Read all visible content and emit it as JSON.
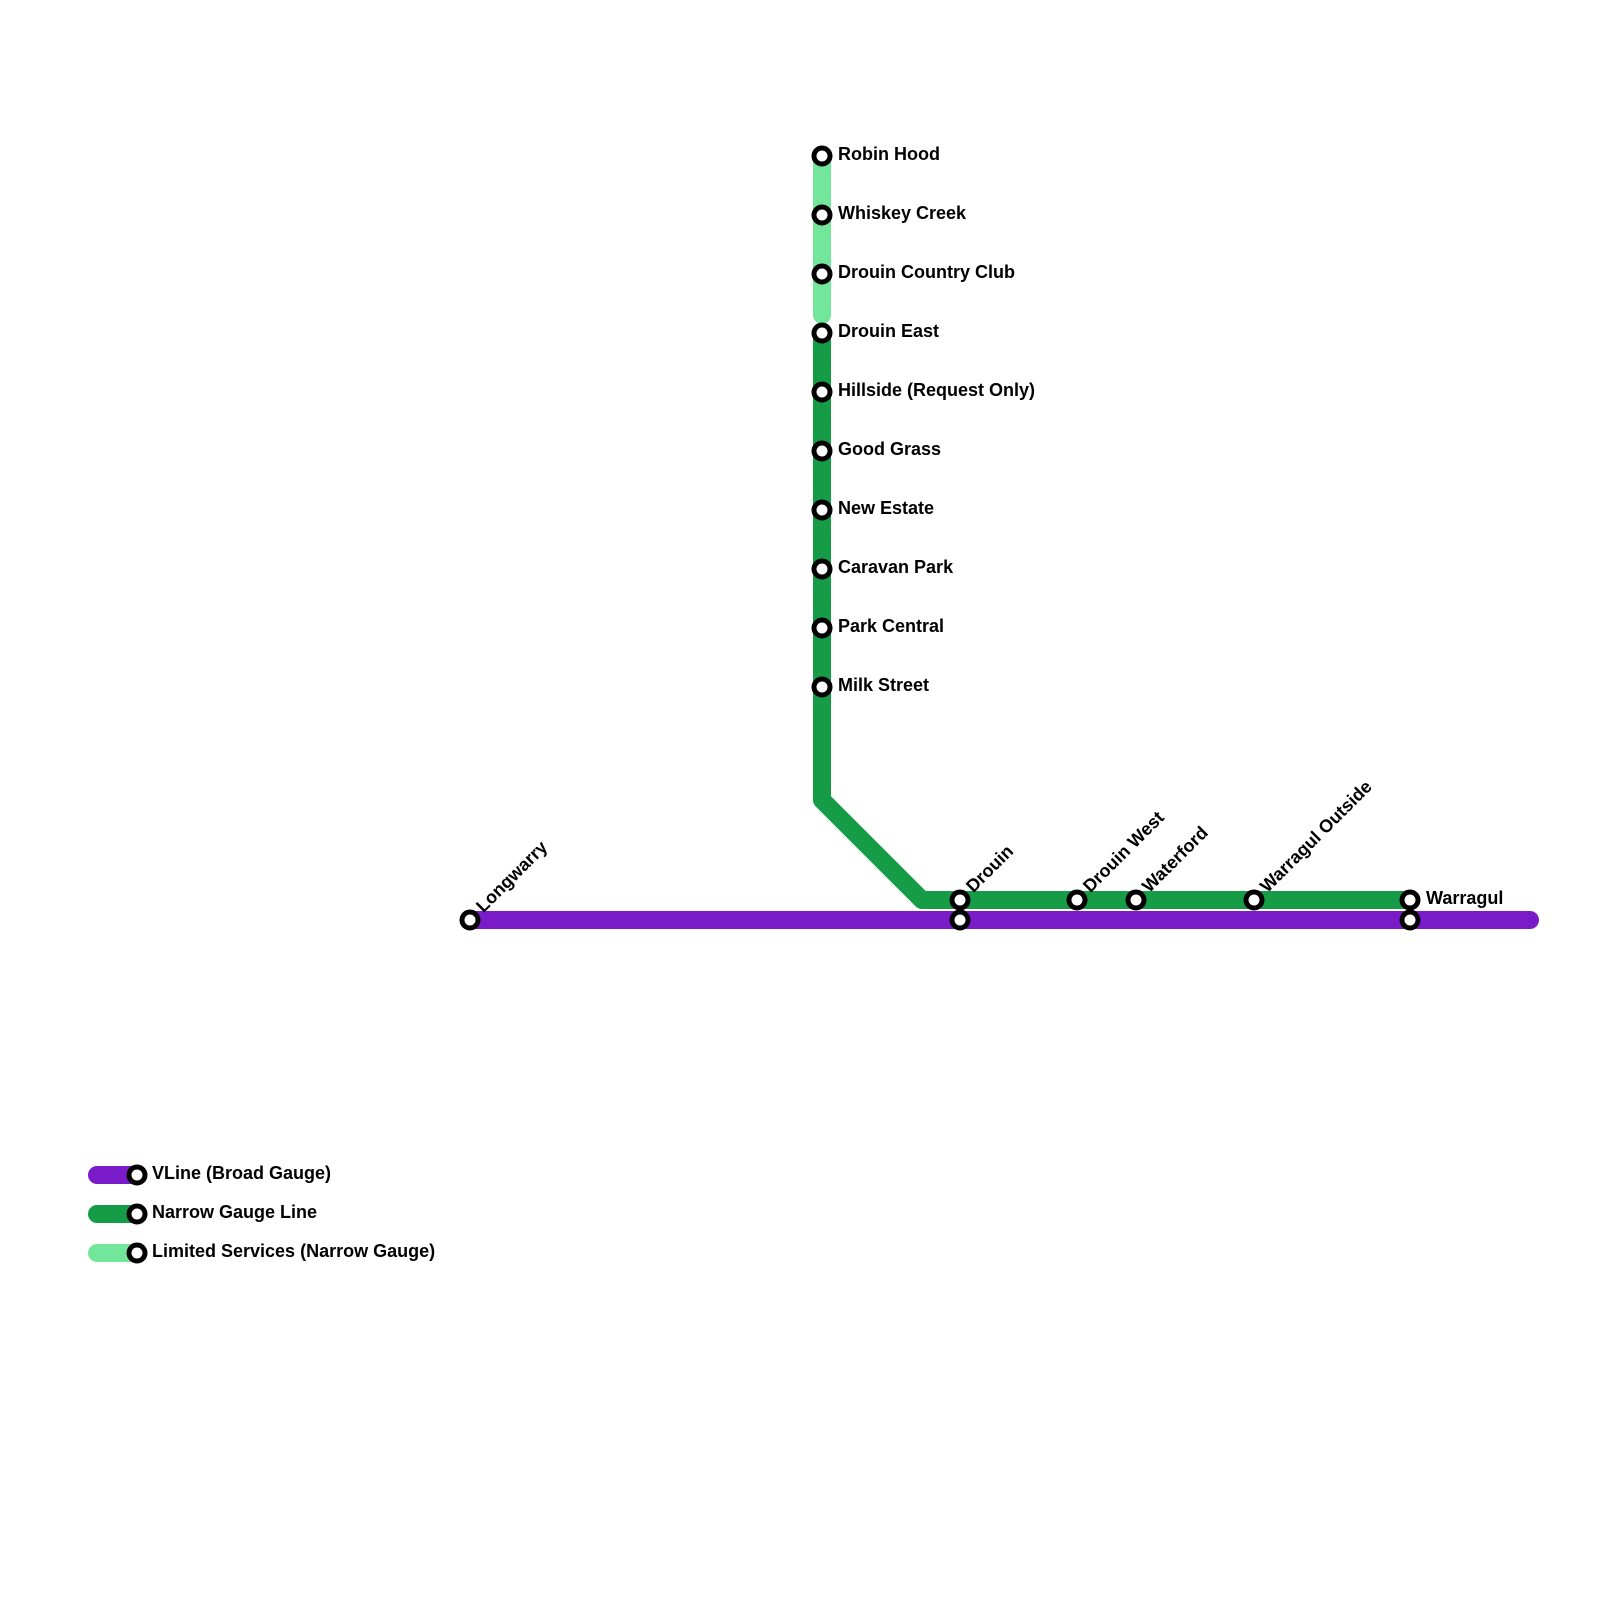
{
  "stations": [
    "Robin Hood",
    "Whiskey Creek",
    "Drouin Country Club",
    "Drouin East",
    "Hillside (Request Only)",
    "Good Grass",
    "New Estate",
    "Caravan Park",
    "Park Central",
    "Milk Street",
    "Longwarry",
    "Drouin",
    "Drouin West",
    "Waterford",
    "Warragul Outside",
    "Warragul"
  ],
  "legend": [
    "VLine (Broad Gauge)",
    "Narrow Gauge Line",
    "Limited Services (Narrow Gauge)"
  ]
}
